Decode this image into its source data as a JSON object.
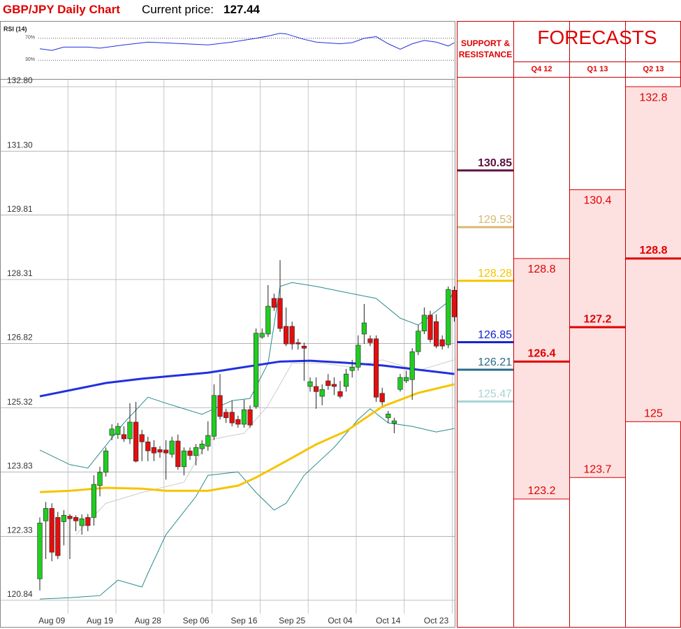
{
  "header": {
    "current_price_label": "Current price:",
    "current_price": 127.44
  },
  "chart_data": {
    "type": "candlestick",
    "title": "GBP/JPY Daily Chart",
    "categories": [
      null,
      null,
      "Aug 09",
      null,
      null,
      null,
      null,
      null,
      null,
      null,
      "Aug 19",
      null,
      null,
      null,
      null,
      null,
      null,
      null,
      "Aug 28",
      null,
      null,
      null,
      null,
      null,
      null,
      null,
      "Sep 06",
      null,
      null,
      null,
      null,
      null,
      null,
      null,
      "Sep 16",
      null,
      null,
      null,
      null,
      null,
      null,
      null,
      "Sep 25",
      null,
      null,
      null,
      null,
      null,
      null,
      null,
      "Oct 04",
      null,
      null,
      null,
      null,
      null,
      null,
      null,
      "Oct 14",
      null,
      null,
      null,
      null,
      null,
      null,
      null,
      "Oct 23",
      null,
      null,
      null
    ],
    "open": [
      121.34,
      122.69,
      122.98,
      122.77,
      122.67,
      122.8,
      122.77,
      122.58,
      122.77,
      122.77,
      123.51,
      123.82,
      124.68,
      124.7,
      124.7,
      124.6,
      124.99,
      124.7,
      124.53,
      124.4,
      124.35,
      124.34,
      124.24,
      124.55,
      123.95,
      124.32,
      124.21,
      124.37,
      124.43,
      124.66,
      125.61,
      125.22,
      125.22,
      125.05,
      124.94,
      125.28,
      125.35,
      126.97,
      127.04,
      127.87,
      127.87,
      127.22,
      127.22,
      126.84,
      126.76,
      125.82,
      125.82,
      125.59,
      125.95,
      125.87,
      125.7,
      125.82,
      126.19,
      126.27,
      127.04,
      126.93,
      126.93,
      125.66,
      125.09,
      124.96,
      125.75,
      125.95,
      125.98,
      126.63,
      127.11,
      127.48,
      127.33,
      126.91,
      126.79,
      128.06
    ],
    "high": [
      122.77,
      123.13,
      123.1,
      122.9,
      122.94,
      122.85,
      122.82,
      122.84,
      122.85,
      123.75,
      123.95,
      124.4,
      124.94,
      124.97,
      124.89,
      125.43,
      125.46,
      124.81,
      124.65,
      124.57,
      124.43,
      124.57,
      124.65,
      124.7,
      124.4,
      124.4,
      124.48,
      124.57,
      125.01,
      125.87,
      126.11,
      125.3,
      125.49,
      125.14,
      125.51,
      125.38,
      127.17,
      127.17,
      128.18,
      127.98,
      128.76,
      127.66,
      127.33,
      126.93,
      126.84,
      126.03,
      126.03,
      125.87,
      126.11,
      126.03,
      125.95,
      126.23,
      126.44,
      127.01,
      127.74,
      127.01,
      127.01,
      125.79,
      125.25,
      125.09,
      126.11,
      126.19,
      126.71,
      127.25,
      127.66,
      127.58,
      127.5,
      127.01,
      128.15,
      128.15
    ],
    "low": [
      121.07,
      121.8,
      121.75,
      121.8,
      122.12,
      121.8,
      122.45,
      122.37,
      122.45,
      122.58,
      123.26,
      123.72,
      124.57,
      124.6,
      124.53,
      124.48,
      124.05,
      124.08,
      124.08,
      124.08,
      124.16,
      123.65,
      124.16,
      123.88,
      123.75,
      124.11,
      123.98,
      124.24,
      124.32,
      124.57,
      125.05,
      124.97,
      124.89,
      124.86,
      124.86,
      124.86,
      125.3,
      126.93,
      126.97,
      127.58,
      127.09,
      126.76,
      126.68,
      126.68,
      125.95,
      125.7,
      125.3,
      125.38,
      125.74,
      125.62,
      125.54,
      125.7,
      126.03,
      126.19,
      126.81,
      126.76,
      125.46,
      125.38,
      124.97,
      124.73,
      125.7,
      125.9,
      125.51,
      126.55,
      127.04,
      126.84,
      126.71,
      126.68,
      126.71,
      127.33
    ],
    "close": [
      122.64,
      122.98,
      121.96,
      121.88,
      122.82,
      122.74,
      122.69,
      122.74,
      122.58,
      123.54,
      123.82,
      124.32,
      124.83,
      124.89,
      124.6,
      124.99,
      124.08,
      124.53,
      124.32,
      124.27,
      124.29,
      124.27,
      124.55,
      123.95,
      124.32,
      124.21,
      124.4,
      124.48,
      124.68,
      125.61,
      125.12,
      125.09,
      124.97,
      124.94,
      125.28,
      124.92,
      127.06,
      127.06,
      127.69,
      127.66,
      127.17,
      126.81,
      126.81,
      126.81,
      126.71,
      125.93,
      125.7,
      125.75,
      125.84,
      125.82,
      125.59,
      126.11,
      126.27,
      126.78,
      127.3,
      126.84,
      125.57,
      125.46,
      125.18,
      125.02,
      126.03,
      126.03,
      126.63,
      127.11,
      127.48,
      126.91,
      126.76,
      126.76,
      128.08,
      127.44
    ],
    "up_color": "#22cc22",
    "down_color": "#e01010",
    "overlays": [
      {
        "color": "#cccccc",
        "width": 1,
        "x": [
          6,
          11,
          17,
          24,
          28,
          34,
          38,
          42,
          47,
          52,
          57,
          63,
          69
        ],
        "values": [
          122.37,
          123.1,
          123.35,
          123.59,
          124.57,
          124.73,
          125.38,
          126.36,
          126.36,
          126.27,
          126.44,
          126.19,
          126.44
        ]
      },
      {
        "color": "#2a8a8a",
        "width": 1,
        "x": [
          0,
          5,
          8,
          14,
          18,
          21,
          27,
          32,
          35,
          38,
          40,
          42,
          46,
          52,
          56,
          60,
          63,
          68,
          69
        ],
        "values": [
          124.34,
          124.0,
          123.92,
          124.97,
          125.57,
          125.43,
          125.17,
          125.49,
          125.54,
          126.36,
          128.15,
          128.24,
          128.15,
          127.98,
          127.87,
          127.41,
          127.25,
          127.79,
          128.06
        ]
      },
      {
        "color": "#2a8a8a",
        "width": 1,
        "x": [
          0,
          5,
          10,
          13,
          17,
          18,
          21,
          26,
          28,
          33,
          36,
          39,
          41,
          44,
          49,
          53,
          55,
          58,
          62,
          66,
          69
        ],
        "values": [
          120.87,
          120.9,
          120.95,
          121.31,
          121.15,
          121.47,
          122.37,
          123.26,
          123.75,
          123.83,
          123.35,
          122.94,
          123.1,
          123.75,
          124.4,
          125.05,
          125.3,
          124.97,
          124.89,
          124.76,
          124.84
        ]
      },
      {
        "color": "#f5c400",
        "width": 3,
        "x": [
          0,
          5,
          11,
          17,
          21,
          28,
          33,
          36,
          41,
          46,
          51,
          57,
          63,
          69
        ],
        "values": [
          123.36,
          123.39,
          123.46,
          123.44,
          123.39,
          123.39,
          123.51,
          123.7,
          124.08,
          124.47,
          124.78,
          125.35,
          125.67,
          125.87
        ]
      },
      {
        "color": "#2030e0",
        "width": 3,
        "x": [
          0,
          11,
          17,
          28,
          40,
          45,
          51,
          57,
          63,
          69
        ],
        "values": [
          125.59,
          125.9,
          126.0,
          126.14,
          126.4,
          126.42,
          126.37,
          126.31,
          126.21,
          126.11
        ]
      }
    ],
    "ylim": [
      120.53,
      132.98
    ],
    "yticks": [
      {
        "value": 132.8,
        "label": "132.80"
      },
      {
        "value": 131.3,
        "label": "131.30"
      },
      129.81,
      128.31,
      126.82,
      125.32,
      123.83,
      122.33,
      120.84
    ],
    "grid": true
  },
  "rsi": {
    "label": "RSI (14)",
    "color": "#2030e0",
    "ylim": [
      10,
      90
    ],
    "levels": [
      {
        "value": 70,
        "label": "70%"
      },
      {
        "value": 30,
        "label": "30%"
      }
    ],
    "x": [
      0,
      2,
      4,
      8,
      10,
      14,
      18,
      20,
      24,
      28,
      32,
      36,
      38,
      40,
      41,
      44,
      46,
      50,
      52,
      54,
      56,
      58,
      60,
      62,
      64,
      66,
      68,
      69
    ],
    "values": [
      51,
      48,
      54,
      54,
      52,
      58,
      63,
      62,
      60,
      58,
      63,
      70,
      74,
      79,
      78,
      68,
      63,
      60,
      62,
      70,
      73,
      60,
      50,
      60,
      66,
      63,
      56,
      62
    ]
  },
  "support_resistance": {
    "title": "SUPPORT & RESISTANCE",
    "levels": [
      {
        "value": 130.85,
        "color": "#5c1040"
      },
      {
        "value": 129.53,
        "color": "#d8b870"
      },
      {
        "value": 128.28,
        "color": "#f5c400"
      },
      {
        "value": 126.85,
        "color": "#1020d0"
      },
      {
        "value": 126.21,
        "color": "#2a6a8a"
      },
      {
        "value": 125.47,
        "color": "#a8d4d4"
      }
    ]
  },
  "forecasts": {
    "title": "FORECASTS",
    "quarters": [
      {
        "label": "Q4 12",
        "high": 128.8,
        "mid": 126.4,
        "low": 123.2
      },
      {
        "label": "Q1 13",
        "high": 130.4,
        "mid": 127.2,
        "low": 123.7
      },
      {
        "label": "Q2 13",
        "high": 132.8,
        "mid": 128.8,
        "low": 125
      }
    ]
  }
}
